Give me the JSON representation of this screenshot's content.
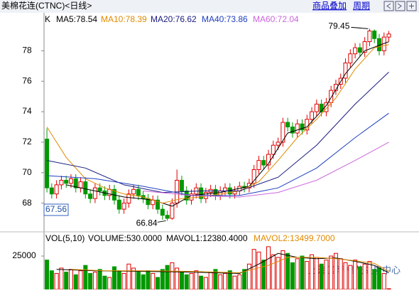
{
  "header": {
    "title": "美棉花连(CTNC)<日线>",
    "buttons": [
      "商品叠加",
      "周期"
    ]
  },
  "watermark": "上海国际棉花交易中心",
  "chart_data": [
    {
      "type": "candlestick",
      "label": "K",
      "up_color": "#e00000",
      "down_color": "#009900",
      "xlim": [
        -0.6,
        72.1
      ],
      "ylim": [
        66.3,
        80.4
      ],
      "yticks": [
        68,
        70,
        72,
        74,
        76,
        78
      ],
      "marker": 67.56,
      "x": [
        0,
        1,
        2,
        3,
        4,
        5,
        6,
        7,
        8,
        9,
        10,
        11,
        12,
        13,
        14,
        15,
        16,
        17,
        18,
        19,
        20,
        21,
        22,
        23,
        24,
        25,
        26,
        27,
        28,
        29,
        30,
        31,
        32,
        33,
        34,
        35,
        36,
        37,
        38,
        39,
        40,
        41,
        42,
        43,
        44,
        45,
        46,
        47,
        48,
        49,
        50,
        51,
        52,
        53,
        54,
        55,
        56,
        57,
        58,
        59,
        60,
        61,
        62,
        63,
        64,
        65,
        66,
        67,
        68,
        69,
        70,
        71
      ],
      "open": [
        72.2,
        69.0,
        68.6,
        69.2,
        69.5,
        69.3,
        69.6,
        69.0,
        69.4,
        68.6,
        68.3,
        69.0,
        68.8,
        68.5,
        68.9,
        68.2,
        67.6,
        68.0,
        68.6,
        68.9,
        68.5,
        68.3,
        67.9,
        68.2,
        67.6,
        67.2,
        67.0,
        68.0,
        69.5,
        68.8,
        68.2,
        68.6,
        69.0,
        68.3,
        68.7,
        68.9,
        68.5,
        68.8,
        69.0,
        68.6,
        68.8,
        69.1,
        69.0,
        69.3,
        70.2,
        70.8,
        70.5,
        71.2,
        71.8,
        72.0,
        73.3,
        73.0,
        72.6,
        73.2,
        72.8,
        73.5,
        74.0,
        74.5,
        74.0,
        74.6,
        75.4,
        75.8,
        76.2,
        77.2,
        77.8,
        78.2,
        77.9,
        78.6,
        79.3,
        78.8,
        78.0,
        78.9
      ],
      "high": [
        72.9,
        69.3,
        69.5,
        69.8,
        69.8,
        69.9,
        69.9,
        69.7,
        69.7,
        68.9,
        69.3,
        69.3,
        69.1,
        69.2,
        69.2,
        68.5,
        68.3,
        68.9,
        69.2,
        69.2,
        68.8,
        68.6,
        68.5,
        68.5,
        67.9,
        67.5,
        68.3,
        70.2,
        69.8,
        69.1,
        68.9,
        69.3,
        69.3,
        69.0,
        69.2,
        69.2,
        69.1,
        69.3,
        69.3,
        69.1,
        69.4,
        69.4,
        69.6,
        70.5,
        71.1,
        71.1,
        71.5,
        72.1,
        72.3,
        73.6,
        73.6,
        73.3,
        73.5,
        73.5,
        73.8,
        74.3,
        74.8,
        74.8,
        74.9,
        75.7,
        76.1,
        76.5,
        77.5,
        78.1,
        78.5,
        78.5,
        78.9,
        79.45,
        79.4,
        79.1,
        79.2,
        79.3
      ],
      "low": [
        68.7,
        68.3,
        68.3,
        68.9,
        69.0,
        69.0,
        68.7,
        68.7,
        68.3,
        68.0,
        68.0,
        68.5,
        68.2,
        68.2,
        67.9,
        67.3,
        67.3,
        67.7,
        68.3,
        68.2,
        68.0,
        67.6,
        67.6,
        67.3,
        66.9,
        66.84,
        66.9,
        67.7,
        68.5,
        67.9,
        67.9,
        68.3,
        68.0,
        68.0,
        68.4,
        68.2,
        68.2,
        68.5,
        68.3,
        68.3,
        68.5,
        68.7,
        68.7,
        69.0,
        69.9,
        70.2,
        70.2,
        70.9,
        71.5,
        71.7,
        72.7,
        72.3,
        72.3,
        72.5,
        72.5,
        73.2,
        73.7,
        73.7,
        73.7,
        74.3,
        75.1,
        75.5,
        75.9,
        76.9,
        77.5,
        77.6,
        77.6,
        78.3,
        78.5,
        77.7,
        77.7,
        78.6
      ],
      "close": [
        69.0,
        68.6,
        69.2,
        69.5,
        69.3,
        69.6,
        69.0,
        69.4,
        68.6,
        68.3,
        69.0,
        68.8,
        68.5,
        68.9,
        68.2,
        67.6,
        68.0,
        68.6,
        68.9,
        68.5,
        68.3,
        67.9,
        68.2,
        67.6,
        67.2,
        67.0,
        68.0,
        69.5,
        68.8,
        68.2,
        68.6,
        69.0,
        68.3,
        68.7,
        68.9,
        68.5,
        68.8,
        69.0,
        68.6,
        68.8,
        69.1,
        69.0,
        69.3,
        70.2,
        70.8,
        70.5,
        71.2,
        71.8,
        72.0,
        73.3,
        73.0,
        72.6,
        73.2,
        72.8,
        73.5,
        74.0,
        74.5,
        74.0,
        74.6,
        75.4,
        75.8,
        76.2,
        77.2,
        77.8,
        78.2,
        77.9,
        78.6,
        79.3,
        78.8,
        78.0,
        78.9,
        79.1
      ],
      "series": [
        {
          "name": "MA5:78.54",
          "color": "#000000",
          "x": [
            4,
            10,
            16,
            22,
            26,
            30,
            36,
            42,
            46,
            50,
            54,
            58,
            62,
            66,
            71
          ],
          "values": [
            69.2,
            68.8,
            68.4,
            68.2,
            67.8,
            68.5,
            68.7,
            69.1,
            70.6,
            72.6,
            73.0,
            74.4,
            76.5,
            78.0,
            78.6
          ]
        },
        {
          "name": "MA10:78.39",
          "color": "#e08a00",
          "x": [
            0,
            4,
            8,
            12,
            16,
            20,
            24,
            28,
            32,
            36,
            40,
            44,
            48,
            52,
            56,
            60,
            64,
            68,
            71
          ],
          "values": [
            73.0,
            71.0,
            69.6,
            69.0,
            68.6,
            68.4,
            68.0,
            68.3,
            68.4,
            68.6,
            68.8,
            69.4,
            70.8,
            72.3,
            73.5,
            74.9,
            76.8,
            78.2,
            78.4
          ]
        },
        {
          "name": "MA20:76.62",
          "color": "#1a1a80",
          "x": [
            0,
            8,
            16,
            24,
            32,
            40,
            48,
            56,
            64,
            71
          ],
          "values": [
            70.8,
            70.3,
            69.2,
            68.7,
            68.8,
            68.8,
            69.7,
            71.8,
            74.5,
            76.6
          ]
        },
        {
          "name": "MA40:73.86",
          "color": "#1f3fbf",
          "x": [
            0,
            10,
            20,
            30,
            40,
            48,
            56,
            64,
            71
          ],
          "values": [
            69.8,
            69.6,
            69.1,
            68.5,
            68.5,
            69.0,
            70.3,
            72.3,
            73.9
          ]
        },
        {
          "name": "MA60:72.04",
          "color": "#cc66dd",
          "x": [
            20,
            30,
            40,
            48,
            56,
            64,
            71
          ],
          "values": [
            68.8,
            68.5,
            68.4,
            68.7,
            69.5,
            70.8,
            72.0
          ]
        }
      ]
    },
    {
      "type": "bar",
      "header": [
        "VOL(5,10)",
        "VOLUME:530.0000",
        "MAVOL1:12380.4000",
        "MAVOL2:13499.7000"
      ],
      "ylim": [
        0,
        33000
      ],
      "yticks": [
        25000
      ],
      "values": [
        22000,
        14000,
        12000,
        16000,
        13000,
        15000,
        11000,
        14000,
        18000,
        12000,
        13000,
        15000,
        10000,
        9000,
        17000,
        14000,
        12000,
        19000,
        16000,
        13000,
        11000,
        14000,
        12000,
        9000,
        15000,
        18000,
        20000,
        16000,
        13000,
        11000,
        12000,
        14000,
        10000,
        9000,
        13000,
        15000,
        11000,
        12000,
        14000,
        10000,
        11000,
        15000,
        19000,
        30000,
        28000,
        22000,
        32000,
        26000,
        24000,
        29000,
        27000,
        20000,
        23000,
        25000,
        21000,
        26000,
        24000,
        19000,
        22000,
        25000,
        27000,
        23000,
        20000,
        18000,
        22000,
        17000,
        19000,
        21000,
        15000,
        16000,
        12000,
        530
      ],
      "lines": [
        {
          "color": "#000000",
          "x": [
            2,
            10,
            20,
            30,
            40,
            44,
            48,
            52,
            56,
            60,
            64,
            68,
            71
          ],
          "values": [
            15000,
            14000,
            13500,
            13000,
            12000,
            19000,
            27000,
            24000,
            23000,
            23500,
            21000,
            18000,
            12380
          ]
        },
        {
          "color": "#e08a00",
          "x": [
            5,
            12,
            20,
            30,
            40,
            46,
            50,
            56,
            60,
            64,
            68,
            71
          ],
          "values": [
            15000,
            14000,
            14000,
            13500,
            12500,
            18000,
            24000,
            24000,
            23000,
            21500,
            19500,
            13500
          ]
        }
      ]
    }
  ]
}
